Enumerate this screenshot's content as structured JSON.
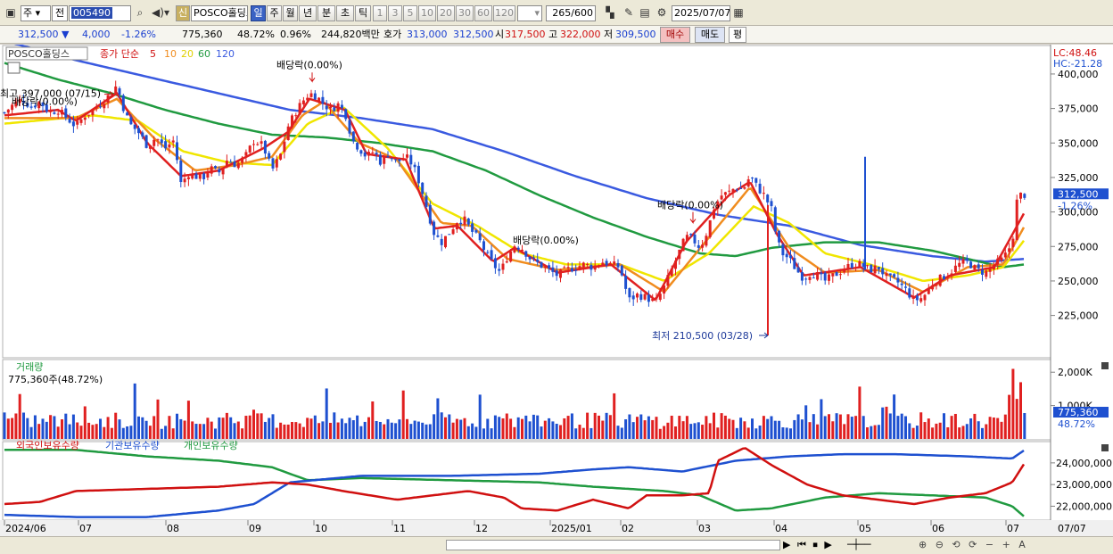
{
  "toolbar": {
    "market": "주",
    "prev_label": "전",
    "code": "005490",
    "name": "POSCO홀딩스",
    "shin": "신",
    "periods": [
      "일",
      "주",
      "월",
      "년",
      "분",
      "초",
      "틱"
    ],
    "selected_period": "일",
    "minutes": [
      "1",
      "3",
      "5",
      "10",
      "20",
      "30",
      "60",
      "120"
    ],
    "count": "265",
    "count_total": "/600",
    "date": "2025/07/07"
  },
  "quote": {
    "price": "312,500",
    "change": "4,000",
    "change_pct": "-1.26%",
    "volume": "775,360",
    "vol_ratio": "48.72%",
    "turnover_pct": "0.96%",
    "amount": "244,820백만",
    "hoga_label": "호가",
    "hoga_ask": "313,000",
    "hoga_bid": "312,500",
    "open_label": "시",
    "open": "317,500",
    "high_label": "고",
    "high": "322,000",
    "low_label": "저",
    "low": "309,500",
    "buy": "매수",
    "sell": "매도",
    "avg": "평"
  },
  "chart_data": [
    {
      "type": "candlestick",
      "legend": [
        "POSCO홀딩스",
        "종가 단순",
        "5",
        "10",
        "20",
        "60",
        "120"
      ],
      "colors": {
        "up": "#e02020",
        "down": "#1e50d0",
        "ma5": "#e02020",
        "ma10": "#f08c1e",
        "ma20": "#f0e600",
        "ma60": "#209a40",
        "ma120": "#3a5ae0"
      },
      "yticks": [
        225000,
        250000,
        275000,
        300000,
        325000,
        350000,
        375000,
        400000
      ],
      "ytick_labels": [
        "225,000",
        "250,000",
        "275,000",
        "300,000",
        "325,000",
        "350,000",
        "375,000",
        "400,000"
      ],
      "ylim": [
        195000,
        420000
      ],
      "xlabels": [
        "2024/06",
        "07",
        "08",
        "09",
        "10",
        "11",
        "12",
        "2025/01",
        "02",
        "03",
        "04",
        "05",
        "06",
        "07",
        "07/07"
      ],
      "close_path": [
        [
          0,
          372000
        ],
        [
          10,
          378000
        ],
        [
          20,
          382000
        ],
        [
          30,
          376000
        ],
        [
          40,
          380000
        ],
        [
          50,
          372000
        ],
        [
          60,
          374000
        ],
        [
          70,
          368000
        ],
        [
          80,
          362000
        ],
        [
          90,
          370000
        ],
        [
          100,
          374000
        ],
        [
          110,
          380000
        ],
        [
          120,
          386000
        ],
        [
          126,
          392000
        ],
        [
          132,
          378000
        ],
        [
          140,
          364000
        ],
        [
          150,
          358000
        ],
        [
          160,
          348000
        ],
        [
          170,
          354000
        ],
        [
          180,
          346000
        ],
        [
          190,
          352000
        ],
        [
          198,
          320000
        ],
        [
          206,
          328000
        ],
        [
          214,
          326000
        ],
        [
          222,
          324000
        ],
        [
          230,
          332000
        ],
        [
          240,
          328000
        ],
        [
          250,
          338000
        ],
        [
          260,
          334000
        ],
        [
          270,
          340000
        ],
        [
          280,
          352000
        ],
        [
          290,
          348000
        ],
        [
          300,
          330000
        ],
        [
          310,
          342000
        ],
        [
          318,
          362000
        ],
        [
          326,
          372000
        ],
        [
          334,
          380000
        ],
        [
          342,
          386000
        ],
        [
          350,
          384000
        ],
        [
          358,
          378000
        ],
        [
          366,
          374000
        ],
        [
          374,
          378000
        ],
        [
          382,
          372000
        ],
        [
          390,
          352000
        ],
        [
          398,
          346000
        ],
        [
          406,
          340000
        ],
        [
          414,
          344000
        ],
        [
          422,
          336000
        ],
        [
          430,
          342000
        ],
        [
          440,
          336000
        ],
        [
          450,
          340000
        ],
        [
          458,
          334000
        ],
        [
          466,
          320000
        ],
        [
          474,
          302000
        ],
        [
          482,
          284000
        ],
        [
          490,
          278000
        ],
        [
          500,
          286000
        ],
        [
          508,
          294000
        ],
        [
          516,
          294000
        ],
        [
          524,
          286000
        ],
        [
          532,
          280000
        ],
        [
          540,
          270000
        ],
        [
          548,
          262000
        ],
        [
          556,
          256000
        ],
        [
          564,
          268000
        ],
        [
          572,
          276000
        ],
        [
          580,
          274000
        ],
        [
          590,
          266000
        ],
        [
          600,
          262000
        ],
        [
          610,
          258000
        ],
        [
          620,
          254000
        ],
        [
          630,
          258000
        ],
        [
          640,
          260000
        ],
        [
          650,
          262000
        ],
        [
          660,
          260000
        ],
        [
          670,
          264000
        ],
        [
          680,
          262000
        ],
        [
          690,
          260000
        ],
        [
          700,
          236000
        ],
        [
          710,
          240000
        ],
        [
          720,
          238000
        ],
        [
          730,
          234000
        ],
        [
          740,
          246000
        ],
        [
          748,
          258000
        ],
        [
          756,
          270000
        ],
        [
          764,
          282000
        ],
        [
          772,
          280000
        ],
        [
          780,
          274000
        ],
        [
          788,
          286000
        ],
        [
          796,
          304000
        ],
        [
          804,
          312000
        ],
        [
          812,
          314000
        ],
        [
          820,
          318000
        ],
        [
          828,
          316000
        ],
        [
          836,
          326000
        ],
        [
          844,
          318000
        ],
        [
          852,
          312000
        ],
        [
          860,
          302000
        ],
        [
          866,
          280000
        ],
        [
          872,
          270000
        ],
        [
          880,
          266000
        ],
        [
          888,
          258000
        ],
        [
          896,
          252000
        ],
        [
          904,
          256000
        ],
        [
          912,
          254000
        ],
        [
          920,
          250000
        ],
        [
          930,
          254000
        ],
        [
          940,
          258000
        ],
        [
          950,
          262000
        ],
        [
          960,
          262000
        ],
        [
          970,
          258000
        ],
        [
          980,
          260000
        ],
        [
          990,
          252000
        ],
        [
          1000,
          250000
        ],
        [
          1010,
          244000
        ],
        [
          1020,
          236000
        ],
        [
          1030,
          238000
        ],
        [
          1040,
          248000
        ],
        [
          1050,
          252000
        ],
        [
          1060,
          256000
        ],
        [
          1070,
          262000
        ],
        [
          1080,
          264000
        ],
        [
          1090,
          258000
        ],
        [
          1100,
          256000
        ],
        [
          1110,
          262000
        ],
        [
          1120,
          266000
        ],
        [
          1130,
          278000
        ],
        [
          1136,
          312000
        ],
        [
          1144,
          312500
        ]
      ],
      "ma5_path": [
        [
          0,
          370000
        ],
        [
          60,
          374000
        ],
        [
          80,
          366000
        ],
        [
          126,
          386000
        ],
        [
          160,
          350000
        ],
        [
          198,
          326000
        ],
        [
          240,
          330000
        ],
        [
          290,
          346000
        ],
        [
          318,
          358000
        ],
        [
          342,
          382000
        ],
        [
          382,
          374000
        ],
        [
          406,
          342000
        ],
        [
          450,
          338000
        ],
        [
          482,
          288000
        ],
        [
          508,
          290000
        ],
        [
          548,
          264000
        ],
        [
          572,
          274000
        ],
        [
          620,
          256000
        ],
        [
          680,
          262000
        ],
        [
          730,
          236000
        ],
        [
          764,
          278000
        ],
        [
          812,
          312000
        ],
        [
          836,
          322000
        ],
        [
          866,
          284000
        ],
        [
          896,
          254000
        ],
        [
          960,
          260000
        ],
        [
          1020,
          238000
        ],
        [
          1060,
          254000
        ],
        [
          1110,
          260000
        ],
        [
          1144,
          300000
        ]
      ],
      "ma10_path": [
        [
          0,
          368000
        ],
        [
          80,
          368000
        ],
        [
          126,
          382000
        ],
        [
          170,
          352000
        ],
        [
          214,
          330000
        ],
        [
          260,
          334000
        ],
        [
          300,
          340000
        ],
        [
          334,
          370000
        ],
        [
          358,
          380000
        ],
        [
          398,
          350000
        ],
        [
          440,
          338000
        ],
        [
          490,
          292000
        ],
        [
          524,
          290000
        ],
        [
          564,
          266000
        ],
        [
          620,
          258000
        ],
        [
          690,
          262000
        ],
        [
          740,
          242000
        ],
        [
          788,
          280000
        ],
        [
          836,
          318000
        ],
        [
          880,
          274000
        ],
        [
          920,
          256000
        ],
        [
          980,
          258000
        ],
        [
          1030,
          242000
        ],
        [
          1080,
          260000
        ],
        [
          1120,
          262000
        ],
        [
          1144,
          290000
        ]
      ],
      "ma20_path": [
        [
          0,
          364000
        ],
        [
          100,
          370000
        ],
        [
          150,
          366000
        ],
        [
          200,
          344000
        ],
        [
          250,
          336000
        ],
        [
          300,
          334000
        ],
        [
          340,
          364000
        ],
        [
          380,
          376000
        ],
        [
          430,
          346000
        ],
        [
          480,
          306000
        ],
        [
          530,
          290000
        ],
        [
          580,
          270000
        ],
        [
          630,
          262000
        ],
        [
          690,
          262000
        ],
        [
          740,
          250000
        ],
        [
          790,
          270000
        ],
        [
          840,
          304000
        ],
        [
          880,
          292000
        ],
        [
          920,
          270000
        ],
        [
          970,
          262000
        ],
        [
          1030,
          250000
        ],
        [
          1080,
          254000
        ],
        [
          1120,
          260000
        ],
        [
          1144,
          280000
        ]
      ],
      "ma60_path": [
        [
          0,
          408000
        ],
        [
          60,
          396000
        ],
        [
          120,
          386000
        ],
        [
          180,
          374000
        ],
        [
          240,
          364000
        ],
        [
          300,
          356000
        ],
        [
          360,
          354000
        ],
        [
          420,
          350000
        ],
        [
          480,
          344000
        ],
        [
          540,
          330000
        ],
        [
          600,
          312000
        ],
        [
          660,
          296000
        ],
        [
          720,
          282000
        ],
        [
          780,
          270000
        ],
        [
          820,
          268000
        ],
        [
          860,
          274000
        ],
        [
          920,
          278000
        ],
        [
          980,
          278000
        ],
        [
          1040,
          272000
        ],
        [
          1080,
          266000
        ],
        [
          1120,
          260000
        ],
        [
          1144,
          262000
        ]
      ],
      "ma120_path": [
        [
          0,
          424000
        ],
        [
          80,
          410000
        ],
        [
          160,
          398000
        ],
        [
          240,
          386000
        ],
        [
          320,
          374000
        ],
        [
          400,
          368000
        ],
        [
          480,
          360000
        ],
        [
          560,
          344000
        ],
        [
          640,
          326000
        ],
        [
          720,
          310000
        ],
        [
          800,
          298000
        ],
        [
          880,
          290000
        ],
        [
          960,
          276000
        ],
        [
          1040,
          268000
        ],
        [
          1100,
          264000
        ],
        [
          1144,
          266000
        ]
      ],
      "annotations": [
        {
          "text": "배당락(0.00%)",
          "x": 345,
          "y": 403000
        },
        {
          "text": "최고 397,000 (07/15)",
          "x": 126,
          "y": 397000
        },
        {
          "text": "배당락(0.00%)",
          "x": 80,
          "y": 388000
        },
        {
          "text": "배당락(0.00%)",
          "x": 610,
          "y": 277000
        },
        {
          "text": "배당락(0.00%)",
          "x": 772,
          "y": 300000
        },
        {
          "text": "최저 210,500 (03/28)",
          "x": 858,
          "y": 210500
        }
      ],
      "right_labels": {
        "lc": "LC:48.46",
        "hc": "HC:-21.28",
        "last": "312,500",
        "last_pct": "-1.26%"
      }
    },
    {
      "type": "bar",
      "title": "거래량",
      "subtitle": "775,360주(48.72%)",
      "yticks": [
        1000000,
        2000000
      ],
      "ytick_labels": [
        "1,000K",
        "2,000K"
      ],
      "ylim": [
        0,
        2300000
      ],
      "right_labels": {
        "last": "775,360",
        "last_pct": "48.72%"
      }
    },
    {
      "type": "line",
      "legend": [
        "외국인보유수량",
        "기관보유수량",
        "개인보유수량"
      ],
      "colors": [
        "#d01010",
        "#1e50d0",
        "#209a40"
      ],
      "yticks": [
        22000000,
        23000000,
        24000000
      ],
      "ytick_labels": [
        "22,000,000",
        "23,000,000",
        "24,000,000"
      ],
      "ylim": [
        21400000,
        24900000
      ]
    }
  ]
}
